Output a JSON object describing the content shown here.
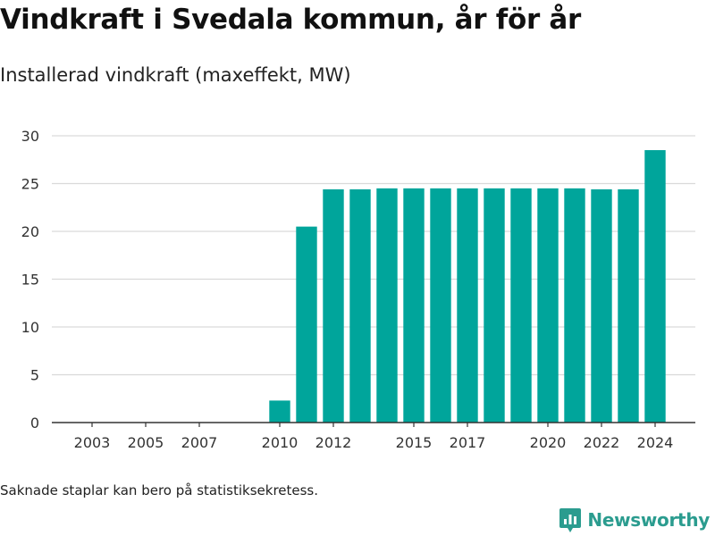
{
  "title": "Vindkraft i Svedala kommun, år för år",
  "subtitle": "Installerad vindkraft (maxeffekt, MW)",
  "footnote": "Saknade staplar kan bero på statistiksekretess.",
  "brand": {
    "name": "Newsworthy",
    "icon": "newsworthy-logo-icon",
    "color": "#2b9c8f"
  },
  "chart_data": {
    "type": "bar",
    "x": [
      2010,
      2011,
      2012,
      2013,
      2014,
      2015,
      2016,
      2017,
      2018,
      2019,
      2020,
      2021,
      2022,
      2023,
      2024
    ],
    "values": [
      2.3,
      20.5,
      24.4,
      24.4,
      24.5,
      24.5,
      24.5,
      24.5,
      24.5,
      24.5,
      24.5,
      24.5,
      24.4,
      24.4,
      28.5
    ],
    "x_ticks": [
      2003,
      2005,
      2007,
      2010,
      2012,
      2015,
      2017,
      2020,
      2022,
      2024
    ],
    "xlim": [
      2001.5,
      2025.5
    ],
    "ylim": [
      0,
      30
    ],
    "y_ticks": [
      0,
      5,
      10,
      15,
      20,
      25,
      30
    ],
    "bar_color": "#00a59b",
    "grid": true,
    "xlabel": "",
    "ylabel": ""
  }
}
